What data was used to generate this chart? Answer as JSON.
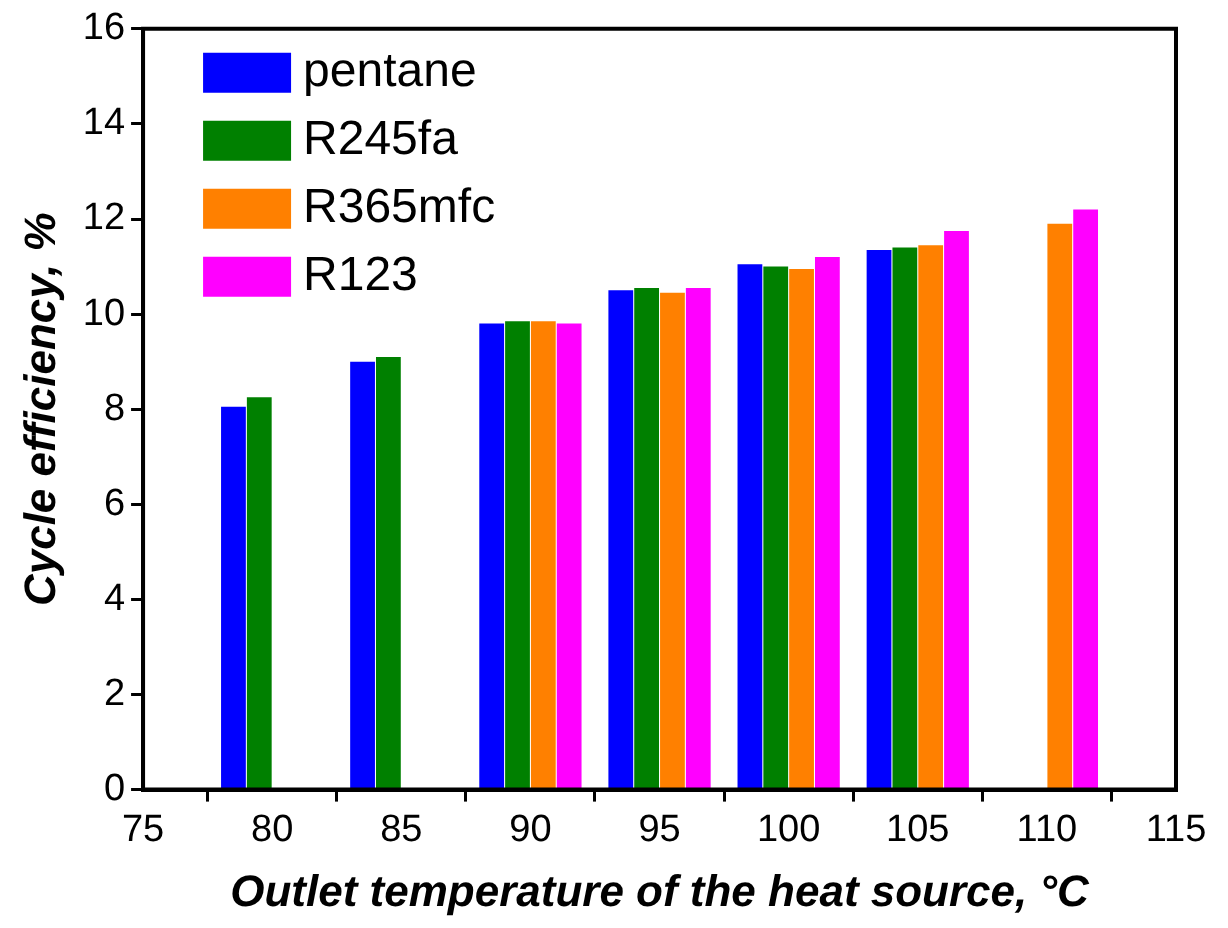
{
  "chart_data": {
    "type": "bar",
    "xlabel": "Outlet temperature of the heat source, °C",
    "ylabel": "Cycle efficiency, %",
    "x": [
      80,
      85,
      90,
      95,
      100,
      105,
      110
    ],
    "series": [
      {
        "name": "pentane",
        "color": "#0000ff",
        "values": [
          8.05,
          9.0,
          9.8,
          10.5,
          11.05,
          11.35,
          null
        ]
      },
      {
        "name": "R245fa",
        "color": "#008000",
        "values": [
          8.25,
          9.1,
          9.85,
          10.55,
          11.0,
          11.4,
          null
        ]
      },
      {
        "name": "R365mfc",
        "color": "#ff8000",
        "values": [
          null,
          null,
          9.85,
          10.45,
          10.95,
          11.45,
          11.9
        ]
      },
      {
        "name": "R123",
        "color": "#ff00ff",
        "values": [
          null,
          null,
          9.8,
          10.55,
          11.2,
          11.75,
          12.2
        ]
      }
    ],
    "xlim": [
      75,
      115
    ],
    "xticks": [
      75,
      80,
      85,
      90,
      95,
      100,
      105,
      110,
      115
    ],
    "ylim": [
      0,
      16
    ],
    "yticks": [
      0,
      2,
      4,
      6,
      8,
      10,
      12,
      14,
      16
    ],
    "grid": false,
    "legend": "top left"
  }
}
